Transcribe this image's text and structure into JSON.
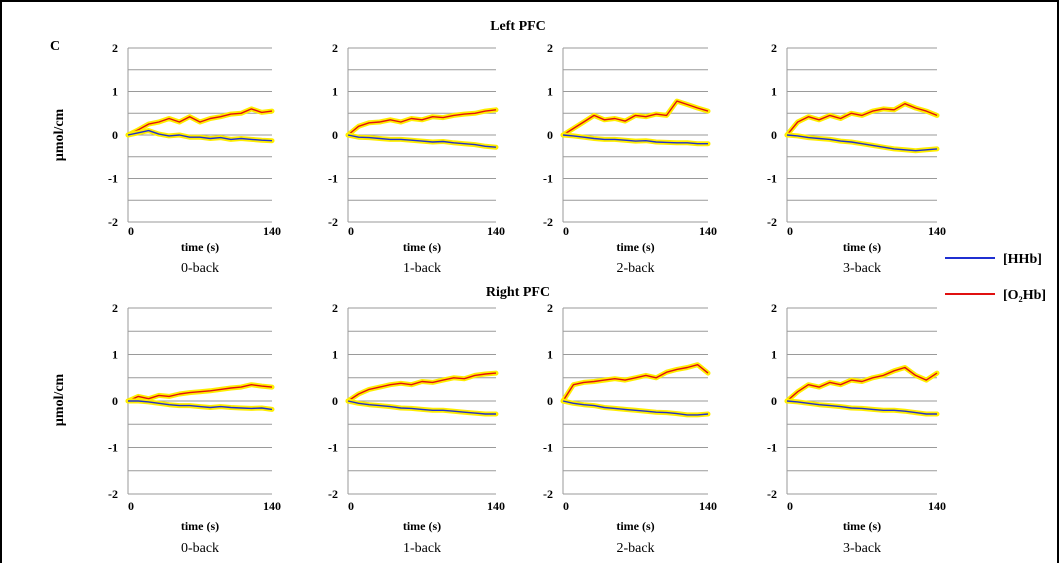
{
  "figure": {
    "panel_label": "C",
    "legend": [
      {
        "label": "[HHb]",
        "color": "#1f2fd1"
      },
      {
        "label": "[O₂Hb]",
        "color": "#e01010"
      }
    ],
    "ci_color": "#ffee00"
  },
  "chart_data": {
    "type": "line",
    "rows": [
      {
        "title": "Left PFC",
        "ylabel": "µmol/cm",
        "panels": [
          {
            "condition": "0-back",
            "xlabel": "time (s)",
            "xlim": [
              0,
              140
            ],
            "ylim": [
              -2,
              2
            ],
            "yticks": [
              -2,
              -1,
              0,
              1,
              2
            ],
            "xticks": [
              0,
              140
            ],
            "series": [
              {
                "name": "[O₂Hb]",
                "x": [
                  0,
                  10,
                  20,
                  30,
                  40,
                  50,
                  60,
                  70,
                  80,
                  90,
                  100,
                  110,
                  120,
                  130,
                  140
                ],
                "y": [
                  0,
                  0.12,
                  0.25,
                  0.3,
                  0.38,
                  0.3,
                  0.42,
                  0.3,
                  0.38,
                  0.42,
                  0.48,
                  0.5,
                  0.6,
                  0.52,
                  0.55
                ]
              },
              {
                "name": "[HHb]",
                "x": [
                  0,
                  10,
                  20,
                  30,
                  40,
                  50,
                  60,
                  70,
                  80,
                  90,
                  100,
                  110,
                  120,
                  130,
                  140
                ],
                "y": [
                  0,
                  0.05,
                  0.1,
                  0.02,
                  -0.02,
                  0,
                  -0.05,
                  -0.05,
                  -0.08,
                  -0.06,
                  -0.1,
                  -0.08,
                  -0.1,
                  -0.12,
                  -0.13
                ]
              }
            ]
          },
          {
            "condition": "1-back",
            "xlabel": "time (s)",
            "xlim": [
              0,
              140
            ],
            "ylim": [
              -2,
              2
            ],
            "yticks": [
              -2,
              -1,
              0,
              1,
              2
            ],
            "xticks": [
              0,
              140
            ],
            "series": [
              {
                "name": "[O₂Hb]",
                "x": [
                  0,
                  10,
                  20,
                  30,
                  40,
                  50,
                  60,
                  70,
                  80,
                  90,
                  100,
                  110,
                  120,
                  130,
                  140
                ],
                "y": [
                  0,
                  0.2,
                  0.28,
                  0.3,
                  0.35,
                  0.3,
                  0.38,
                  0.35,
                  0.42,
                  0.4,
                  0.45,
                  0.48,
                  0.5,
                  0.55,
                  0.58
                ]
              },
              {
                "name": "[HHb]",
                "x": [
                  0,
                  10,
                  20,
                  30,
                  40,
                  50,
                  60,
                  70,
                  80,
                  90,
                  100,
                  110,
                  120,
                  130,
                  140
                ],
                "y": [
                  0,
                  -0.05,
                  -0.06,
                  -0.08,
                  -0.1,
                  -0.1,
                  -0.12,
                  -0.14,
                  -0.16,
                  -0.15,
                  -0.18,
                  -0.2,
                  -0.22,
                  -0.26,
                  -0.28
                ]
              }
            ]
          },
          {
            "condition": "2-back",
            "xlabel": "time (s)",
            "xlim": [
              0,
              140
            ],
            "ylim": [
              -2,
              2
            ],
            "yticks": [
              -2,
              -1,
              0,
              1,
              2
            ],
            "xticks": [
              0,
              140
            ],
            "series": [
              {
                "name": "[O₂Hb]",
                "x": [
                  0,
                  10,
                  20,
                  30,
                  40,
                  50,
                  60,
                  70,
                  80,
                  90,
                  100,
                  110,
                  120,
                  130,
                  140
                ],
                "y": [
                  0,
                  0.15,
                  0.3,
                  0.45,
                  0.35,
                  0.38,
                  0.32,
                  0.45,
                  0.42,
                  0.48,
                  0.45,
                  0.78,
                  0.7,
                  0.62,
                  0.55
                ]
              },
              {
                "name": "[HHb]",
                "x": [
                  0,
                  10,
                  20,
                  30,
                  40,
                  50,
                  60,
                  70,
                  80,
                  90,
                  100,
                  110,
                  120,
                  130,
                  140
                ],
                "y": [
                  0,
                  -0.02,
                  -0.05,
                  -0.08,
                  -0.1,
                  -0.1,
                  -0.12,
                  -0.14,
                  -0.13,
                  -0.16,
                  -0.17,
                  -0.18,
                  -0.18,
                  -0.2,
                  -0.2
                ]
              }
            ]
          },
          {
            "condition": "3-back",
            "xlabel": "time (s)",
            "xlim": [
              0,
              140
            ],
            "ylim": [
              -2,
              2
            ],
            "yticks": [
              -2,
              -1,
              0,
              1,
              2
            ],
            "xticks": [
              0,
              140
            ],
            "series": [
              {
                "name": "[O₂Hb]",
                "x": [
                  0,
                  10,
                  20,
                  30,
                  40,
                  50,
                  60,
                  70,
                  80,
                  90,
                  100,
                  110,
                  120,
                  130,
                  140
                ],
                "y": [
                  0,
                  0.3,
                  0.42,
                  0.35,
                  0.45,
                  0.38,
                  0.5,
                  0.45,
                  0.55,
                  0.6,
                  0.58,
                  0.72,
                  0.62,
                  0.55,
                  0.45
                ]
              },
              {
                "name": "[HHb]",
                "x": [
                  0,
                  10,
                  20,
                  30,
                  40,
                  50,
                  60,
                  70,
                  80,
                  90,
                  100,
                  110,
                  120,
                  130,
                  140
                ],
                "y": [
                  0,
                  -0.02,
                  -0.06,
                  -0.08,
                  -0.1,
                  -0.14,
                  -0.16,
                  -0.2,
                  -0.24,
                  -0.28,
                  -0.32,
                  -0.34,
                  -0.36,
                  -0.34,
                  -0.32
                ]
              }
            ]
          }
        ]
      },
      {
        "title": "Right PFC",
        "ylabel": "µmol/cm",
        "panels": [
          {
            "condition": "0-back",
            "xlabel": "time (s)",
            "xlim": [
              0,
              140
            ],
            "ylim": [
              -2,
              2
            ],
            "yticks": [
              -2,
              -1,
              0,
              1,
              2
            ],
            "xticks": [
              0,
              140
            ],
            "series": [
              {
                "name": "[O₂Hb]",
                "x": [
                  0,
                  10,
                  20,
                  30,
                  40,
                  50,
                  60,
                  70,
                  80,
                  90,
                  100,
                  110,
                  120,
                  130,
                  140
                ],
                "y": [
                  0,
                  0.1,
                  0.05,
                  0.12,
                  0.1,
                  0.15,
                  0.18,
                  0.2,
                  0.22,
                  0.25,
                  0.28,
                  0.3,
                  0.35,
                  0.32,
                  0.3
                ]
              },
              {
                "name": "[HHb]",
                "x": [
                  0,
                  10,
                  20,
                  30,
                  40,
                  50,
                  60,
                  70,
                  80,
                  90,
                  100,
                  110,
                  120,
                  130,
                  140
                ],
                "y": [
                  0,
                  0,
                  -0.02,
                  -0.05,
                  -0.08,
                  -0.1,
                  -0.1,
                  -0.12,
                  -0.14,
                  -0.12,
                  -0.14,
                  -0.15,
                  -0.16,
                  -0.15,
                  -0.18
                ]
              }
            ]
          },
          {
            "condition": "1-back",
            "xlabel": "time (s)",
            "xlim": [
              0,
              140
            ],
            "ylim": [
              -2,
              2
            ],
            "yticks": [
              -2,
              -1,
              0,
              1,
              2
            ],
            "xticks": [
              0,
              140
            ],
            "series": [
              {
                "name": "[O₂Hb]",
                "x": [
                  0,
                  10,
                  20,
                  30,
                  40,
                  50,
                  60,
                  70,
                  80,
                  90,
                  100,
                  110,
                  120,
                  130,
                  140
                ],
                "y": [
                  0,
                  0.15,
                  0.25,
                  0.3,
                  0.35,
                  0.38,
                  0.35,
                  0.42,
                  0.4,
                  0.45,
                  0.5,
                  0.48,
                  0.55,
                  0.58,
                  0.6
                ]
              },
              {
                "name": "[HHb]",
                "x": [
                  0,
                  10,
                  20,
                  30,
                  40,
                  50,
                  60,
                  70,
                  80,
                  90,
                  100,
                  110,
                  120,
                  130,
                  140
                ],
                "y": [
                  0,
                  -0.05,
                  -0.08,
                  -0.1,
                  -0.12,
                  -0.15,
                  -0.16,
                  -0.18,
                  -0.2,
                  -0.2,
                  -0.22,
                  -0.24,
                  -0.26,
                  -0.28,
                  -0.28
                ]
              }
            ]
          },
          {
            "condition": "2-back",
            "xlabel": "time (s)",
            "xlim": [
              0,
              140
            ],
            "ylim": [
              -2,
              2
            ],
            "yticks": [
              -2,
              -1,
              0,
              1,
              2
            ],
            "xticks": [
              0,
              140
            ],
            "series": [
              {
                "name": "[O₂Hb]",
                "x": [
                  0,
                  10,
                  20,
                  30,
                  40,
                  50,
                  60,
                  70,
                  80,
                  90,
                  100,
                  110,
                  120,
                  130,
                  140
                ],
                "y": [
                  0,
                  0.35,
                  0.4,
                  0.42,
                  0.45,
                  0.48,
                  0.45,
                  0.5,
                  0.55,
                  0.5,
                  0.62,
                  0.68,
                  0.72,
                  0.78,
                  0.6
                ]
              },
              {
                "name": "[HHb]",
                "x": [
                  0,
                  10,
                  20,
                  30,
                  40,
                  50,
                  60,
                  70,
                  80,
                  90,
                  100,
                  110,
                  120,
                  130,
                  140
                ],
                "y": [
                  0,
                  -0.05,
                  -0.08,
                  -0.1,
                  -0.14,
                  -0.16,
                  -0.18,
                  -0.2,
                  -0.22,
                  -0.24,
                  -0.25,
                  -0.27,
                  -0.3,
                  -0.3,
                  -0.28
                ]
              }
            ]
          },
          {
            "condition": "3-back",
            "xlabel": "time (s)",
            "xlim": [
              0,
              140
            ],
            "ylim": [
              -2,
              2
            ],
            "yticks": [
              -2,
              -1,
              0,
              1,
              2
            ],
            "xticks": [
              0,
              140
            ],
            "series": [
              {
                "name": "[O₂Hb]",
                "x": [
                  0,
                  10,
                  20,
                  30,
                  40,
                  50,
                  60,
                  70,
                  80,
                  90,
                  100,
                  110,
                  120,
                  130,
                  140
                ],
                "y": [
                  0,
                  0.2,
                  0.35,
                  0.3,
                  0.4,
                  0.35,
                  0.45,
                  0.42,
                  0.5,
                  0.55,
                  0.65,
                  0.72,
                  0.55,
                  0.45,
                  0.6
                ]
              },
              {
                "name": "[HHb]",
                "x": [
                  0,
                  10,
                  20,
                  30,
                  40,
                  50,
                  60,
                  70,
                  80,
                  90,
                  100,
                  110,
                  120,
                  130,
                  140
                ],
                "y": [
                  0,
                  -0.02,
                  -0.05,
                  -0.08,
                  -0.1,
                  -0.12,
                  -0.15,
                  -0.16,
                  -0.18,
                  -0.2,
                  -0.2,
                  -0.22,
                  -0.25,
                  -0.28,
                  -0.28
                ]
              }
            ]
          }
        ]
      }
    ]
  }
}
